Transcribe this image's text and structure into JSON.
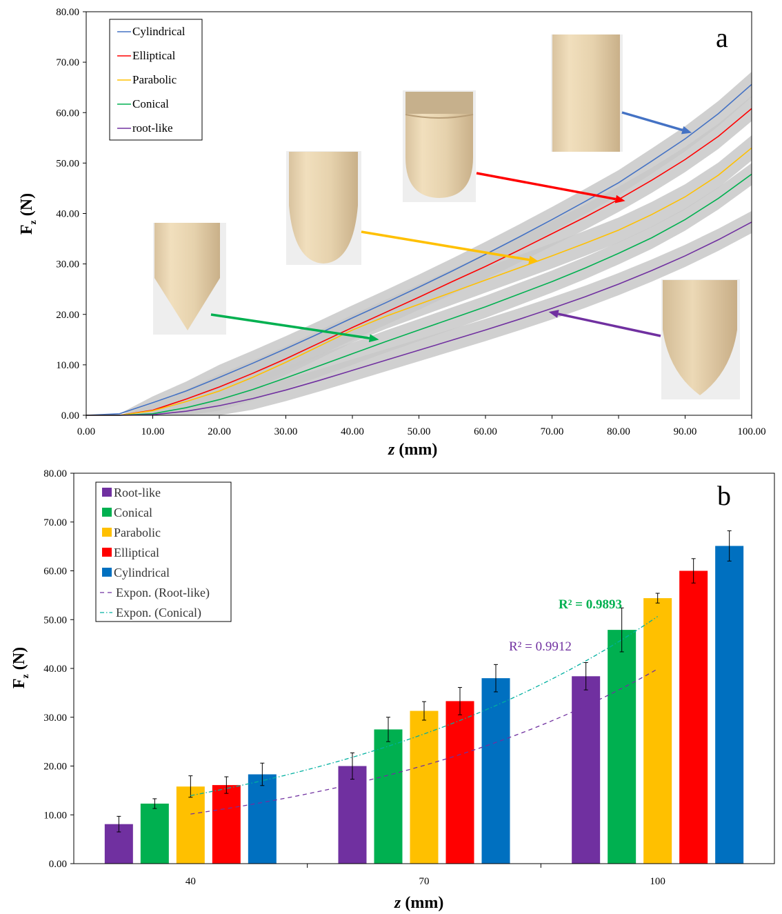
{
  "chart_data": [
    {
      "type": "line",
      "panel_label": "a",
      "xlabel_italic": "z",
      "xlabel_unit": "(mm)",
      "ylabel_main": "F",
      "ylabel_sub": "z",
      "ylabel_unit": "(N)",
      "xlim": [
        0,
        100
      ],
      "ylim": [
        0,
        80
      ],
      "xticks": [
        "0.00",
        "10.00",
        "20.00",
        "30.00",
        "40.00",
        "50.00",
        "60.00",
        "70.00",
        "80.00",
        "90.00",
        "100.00"
      ],
      "yticks": [
        "0.00",
        "10.00",
        "20.00",
        "30.00",
        "40.00",
        "50.00",
        "60.00",
        "70.00",
        "80.00"
      ],
      "legend_position": "top-left",
      "x": [
        0,
        5,
        10,
        15,
        20,
        25,
        30,
        35,
        40,
        45,
        50,
        55,
        60,
        65,
        70,
        75,
        80,
        85,
        90,
        95,
        100
      ],
      "series": [
        {
          "name": "Cylindrical",
          "color": "#4472C4",
          "band": 2.5,
          "values": [
            0,
            0.3,
            2.5,
            4.8,
            7.5,
            10.3,
            13.2,
            16.2,
            19.3,
            22.3,
            25.4,
            28.6,
            31.9,
            35.3,
            38.8,
            42.4,
            46.1,
            50.4,
            54.8,
            59.8,
            65.6
          ]
        },
        {
          "name": "Elliptical",
          "color": "#FF0000",
          "band": 2.5,
          "values": [
            0,
            0,
            1.0,
            3.2,
            5.6,
            8.3,
            11.2,
            14.3,
            17.4,
            20.4,
            23.4,
            26.5,
            29.5,
            32.7,
            36.0,
            39.3,
            42.8,
            46.6,
            50.7,
            55.3,
            60.8
          ]
        },
        {
          "name": "Parabolic",
          "color": "#FFC000",
          "band": 2.5,
          "values": [
            0,
            0,
            0.9,
            2.7,
            4.8,
            7.5,
            10.5,
            13.7,
            16.9,
            19.6,
            22.0,
            24.4,
            26.8,
            29.2,
            31.6,
            34.1,
            36.7,
            39.8,
            43.3,
            47.6,
            53.0
          ]
        },
        {
          "name": "Conical",
          "color": "#00B050",
          "band": 2.2,
          "values": [
            0,
            0,
            0.3,
            1.5,
            3.1,
            5.1,
            7.4,
            9.8,
            12.2,
            14.6,
            16.9,
            19.2,
            21.5,
            24.0,
            26.5,
            29.2,
            32.1,
            35.2,
            38.8,
            43.0,
            47.8
          ]
        },
        {
          "name": "root-like",
          "color": "#7030A0",
          "band": 2.2,
          "values": [
            0,
            0,
            0.1,
            0.8,
            1.9,
            3.3,
            5.0,
            6.9,
            8.9,
            10.9,
            12.9,
            14.9,
            16.9,
            19.0,
            21.2,
            23.5,
            26.0,
            28.7,
            31.6,
            34.8,
            38.3
          ]
        }
      ],
      "annotations": [
        {
          "shape": "cylindrical",
          "arrow_color": "#4472C4",
          "target": [
            91,
            56.0
          ]
        },
        {
          "shape": "elliptical",
          "arrow_color": "#FF0000",
          "target": [
            81,
            42.5
          ]
        },
        {
          "shape": "parabolic",
          "arrow_color": "#FFC000",
          "target": [
            68,
            30.5
          ]
        },
        {
          "shape": "conical",
          "arrow_color": "#00B050",
          "target": [
            44,
            15.0
          ]
        },
        {
          "shape": "root-like",
          "arrow_color": "#7030A0",
          "target": [
            69.5,
            20.5
          ]
        }
      ]
    },
    {
      "type": "bar",
      "panel_label": "b",
      "xlabel_italic": "z",
      "xlabel_unit": "(mm)",
      "ylabel_main": "F",
      "ylabel_sub": "z",
      "ylabel_unit": "(N)",
      "ylim": [
        0,
        80
      ],
      "yticks": [
        "0.00",
        "10.00",
        "20.00",
        "30.00",
        "40.00",
        "50.00",
        "60.00",
        "70.00",
        "80.00"
      ],
      "categories": [
        "40",
        "70",
        "100"
      ],
      "legend_position": "top-left",
      "series": [
        {
          "name": "Root-like",
          "color": "#7030A0",
          "values": [
            8.1,
            20.0,
            38.4
          ],
          "errors": [
            1.6,
            2.7,
            2.8
          ]
        },
        {
          "name": "Conical",
          "color": "#00B050",
          "values": [
            12.3,
            27.5,
            47.9
          ],
          "errors": [
            1.0,
            2.5,
            4.5
          ]
        },
        {
          "name": "Parabolic",
          "color": "#FFC000",
          "values": [
            15.8,
            31.3,
            54.4
          ],
          "errors": [
            2.2,
            1.9,
            1.0
          ]
        },
        {
          "name": "Elliptical",
          "color": "#FF0000",
          "values": [
            16.1,
            33.3,
            60.0
          ],
          "errors": [
            1.7,
            2.8,
            2.5
          ]
        },
        {
          "name": "Cylindrical",
          "color": "#0070C0",
          "values": [
            18.3,
            38.0,
            65.1
          ],
          "errors": [
            2.3,
            2.8,
            3.1
          ]
        }
      ],
      "trendlines": [
        {
          "name": "Expon. (Root-like)",
          "color": "#7030A0",
          "dash": "6,5",
          "x": [
            40,
            100
          ],
          "a": 4.08,
          "b": 0.0228,
          "r2_label": "R² = 0.9912"
        },
        {
          "name": "Expon. (Conical)",
          "color": "#00B0A0",
          "dash": "6,3,1.5,3",
          "x": [
            40,
            100
          ],
          "a": 5.9,
          "b": 0.0215,
          "r2_label": "R² = 0.9893"
        }
      ]
    }
  ]
}
